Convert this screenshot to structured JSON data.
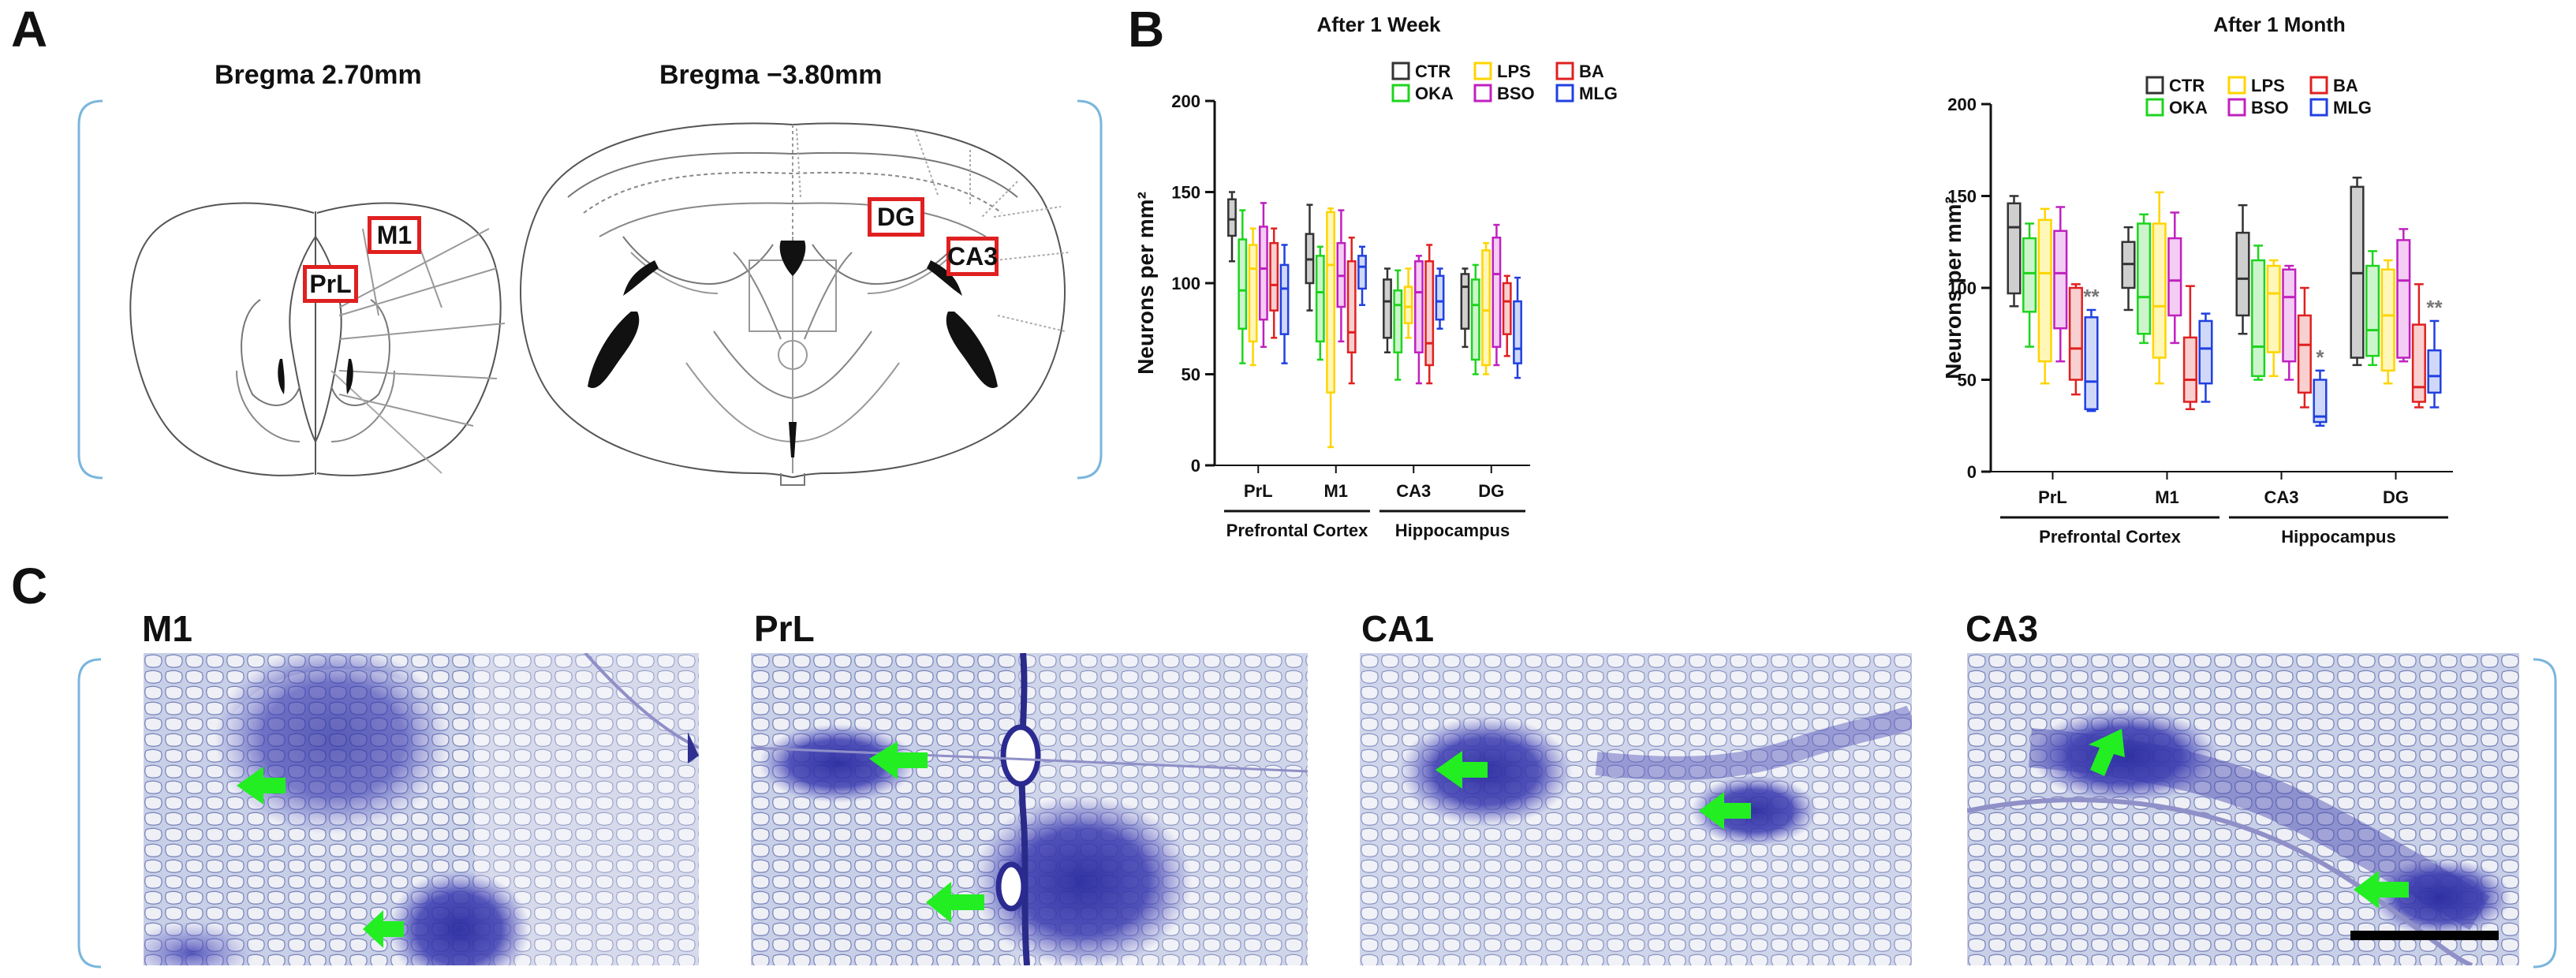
{
  "panels": {
    "a": {
      "label": "A",
      "sections": [
        {
          "bregma": "Bregma 2.70mm",
          "regions": [
            "M1",
            "PrL"
          ]
        },
        {
          "bregma": "Bregma −3.80mm",
          "regions": [
            "DG",
            "CA3"
          ]
        }
      ]
    },
    "b": {
      "label": "B"
    },
    "c": {
      "label": "C",
      "micrographs": [
        {
          "title": "M1"
        },
        {
          "title": "PrL"
        },
        {
          "title": "CA1"
        },
        {
          "title": "CA3"
        }
      ]
    }
  },
  "chart_data": [
    {
      "type": "box",
      "title": "After 1 Week",
      "ylabel": "Neurons per mm²",
      "ylim": [
        0,
        200
      ],
      "yticks": [
        0,
        50,
        100,
        150,
        200
      ],
      "categories": [
        "PrL",
        "M1",
        "CA3",
        "DG"
      ],
      "group_labels": [
        {
          "label": "Prefrontal Cortex",
          "categories": [
            "PrL",
            "M1"
          ]
        },
        {
          "label": "Hippocampus",
          "categories": [
            "CA3",
            "DG"
          ]
        }
      ],
      "legend": [
        {
          "name": "CTR",
          "color": "#333333"
        },
        {
          "name": "LPS",
          "color": "#ffd400"
        },
        {
          "name": "BA",
          "color": "#e02020"
        },
        {
          "name": "OKA",
          "color": "#1ed41e"
        },
        {
          "name": "BSO",
          "color": "#c020c0"
        },
        {
          "name": "MLG",
          "color": "#2040e0"
        }
      ],
      "series": [
        {
          "name": "CTR",
          "color": "#333333",
          "fill": "#cfcfcf",
          "boxes": [
            [
              112,
              126,
              135,
              146,
              150
            ],
            [
              85,
              100,
              113,
              127,
              143
            ],
            [
              62,
              70,
              90,
              102,
              108
            ],
            [
              65,
              75,
              98,
              105,
              108
            ]
          ]
        },
        {
          "name": "OKA",
          "color": "#1ed41e",
          "fill": "#cdf5cd",
          "boxes": [
            [
              56,
              75,
              96,
              124,
              140
            ],
            [
              58,
              68,
              95,
              115,
              120
            ],
            [
              47,
              62,
              88,
              96,
              107
            ],
            [
              50,
              58,
              88,
              102,
              110
            ]
          ]
        },
        {
          "name": "LPS",
          "color": "#ffd400",
          "fill": "#fff7b8",
          "boxes": [
            [
              55,
              68,
              108,
              121,
              130
            ],
            [
              10,
              40,
              110,
              139,
              141
            ],
            [
              70,
              78,
              87,
              98,
              108
            ],
            [
              50,
              55,
              85,
              118,
              122
            ]
          ]
        },
        {
          "name": "BSO",
          "color": "#c020c0",
          "fill": "#f3cdf3",
          "boxes": [
            [
              65,
              80,
              108,
              131,
              144
            ],
            [
              68,
              87,
              104,
              122,
              140
            ],
            [
              45,
              62,
              95,
              112,
              115
            ],
            [
              55,
              65,
              105,
              125,
              132
            ]
          ]
        },
        {
          "name": "BA",
          "color": "#e02020",
          "fill": "#f9d0d0",
          "boxes": [
            [
              70,
              85,
              99,
              122,
              130
            ],
            [
              45,
              62,
              73,
              112,
              125
            ],
            [
              45,
              55,
              67,
              112,
              121
            ],
            [
              60,
              72,
              90,
              100,
              104
            ]
          ]
        },
        {
          "name": "MLG",
          "color": "#2040e0",
          "fill": "#d0d8fa",
          "boxes": [
            [
              56,
              72,
              97,
              110,
              121
            ],
            [
              88,
              97,
              109,
              115,
              120
            ],
            [
              75,
              80,
              90,
              104,
              108
            ],
            [
              48,
              56,
              64,
              90,
              103
            ]
          ]
        }
      ],
      "annotations": []
    },
    {
      "type": "box",
      "title": "After 1 Month",
      "ylabel": "Neurons per mm²",
      "ylim": [
        0,
        200
      ],
      "yticks": [
        0,
        50,
        100,
        150,
        200
      ],
      "categories": [
        "PrL",
        "M1",
        "CA3",
        "DG"
      ],
      "group_labels": [
        {
          "label": "Prefrontal Cortex",
          "categories": [
            "PrL",
            "M1"
          ]
        },
        {
          "label": "Hippocampus",
          "categories": [
            "CA3",
            "DG"
          ]
        }
      ],
      "legend": [
        {
          "name": "CTR",
          "color": "#333333"
        },
        {
          "name": "LPS",
          "color": "#ffd400"
        },
        {
          "name": "BA",
          "color": "#e02020"
        },
        {
          "name": "OKA",
          "color": "#1ed41e"
        },
        {
          "name": "BSO",
          "color": "#c020c0"
        },
        {
          "name": "MLG",
          "color": "#2040e0"
        }
      ],
      "series": [
        {
          "name": "CTR",
          "color": "#333333",
          "fill": "#cfcfcf",
          "boxes": [
            [
              90,
              97,
              133,
              146,
              150
            ],
            [
              88,
              100,
              113,
              125,
              133
            ],
            [
              75,
              85,
              105,
              130,
              145
            ],
            [
              58,
              62,
              108,
              155,
              160
            ]
          ]
        },
        {
          "name": "OKA",
          "color": "#1ed41e",
          "fill": "#cdf5cd",
          "boxes": [
            [
              68,
              87,
              108,
              127,
              135
            ],
            [
              70,
              75,
              95,
              135,
              140
            ],
            [
              50,
              52,
              68,
              115,
              123
            ],
            [
              58,
              63,
              77,
              112,
              120
            ]
          ]
        },
        {
          "name": "LPS",
          "color": "#ffd400",
          "fill": "#fff7b8",
          "boxes": [
            [
              48,
              60,
              108,
              137,
              143
            ],
            [
              48,
              62,
              90,
              135,
              152
            ],
            [
              52,
              65,
              97,
              112,
              115
            ],
            [
              48,
              55,
              85,
              110,
              115
            ]
          ]
        },
        {
          "name": "BSO",
          "color": "#c020c0",
          "fill": "#f3cdf3",
          "boxes": [
            [
              60,
              78,
              108,
              131,
              144
            ],
            [
              70,
              85,
              104,
              127,
              141
            ],
            [
              50,
              60,
              95,
              110,
              112
            ],
            [
              60,
              62,
              104,
              126,
              132
            ]
          ]
        },
        {
          "name": "BA",
          "color": "#e02020",
          "fill": "#f9d0d0",
          "boxes": [
            [
              42,
              50,
              67,
              100,
              102
            ],
            [
              34,
              38,
              50,
              73,
              101
            ],
            [
              35,
              43,
              69,
              85,
              100
            ],
            [
              35,
              38,
              46,
              80,
              102
            ]
          ]
        },
        {
          "name": "MLG",
          "color": "#2040e0",
          "fill": "#d0d8fa",
          "boxes": [
            [
              33,
              34,
              49,
              84,
              88
            ],
            [
              38,
              48,
              67,
              82,
              86
            ],
            [
              25,
              27,
              30,
              50,
              55
            ],
            [
              35,
              43,
              52,
              66,
              82
            ]
          ]
        }
      ],
      "annotations": [
        {
          "category": "PrL",
          "text": "**"
        },
        {
          "category": "CA3",
          "text": "*"
        },
        {
          "category": "DG",
          "text": "**"
        }
      ]
    }
  ]
}
